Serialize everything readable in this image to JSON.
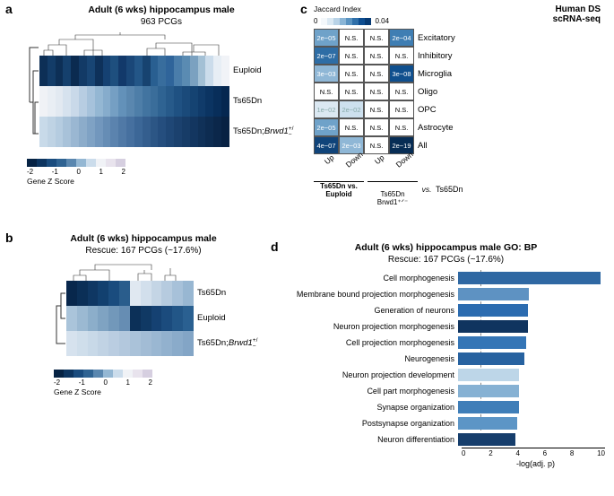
{
  "panels": {
    "a": "a",
    "b": "b",
    "c": "c",
    "d": "d"
  },
  "panel_a": {
    "title_bold": "Adult (6 wks) hippocampus male",
    "subtitle": "963 PCGs",
    "row_labels": [
      "Euploid",
      "Ts65Dn",
      "Ts65Dn;\nBrwd1⁺ᐟ⁻"
    ],
    "rows": [
      [
        "#0d2f56",
        "#133c68",
        "#0d2f56",
        "#15406d",
        "#0b2b50",
        "#123a66",
        "#184574",
        "#0e315a",
        "#154172",
        "#1e4f7e",
        "#12396a",
        "#1a4778",
        "#235687",
        "#174370",
        "#295f91",
        "#386d9d",
        "#2f649a",
        "#4a7daa",
        "#5a8bb2",
        "#7ba1c0",
        "#a3c0d5",
        "#cbdceb",
        "#e7eef5",
        "#f1f3f7"
      ],
      [
        "#f0f2f6",
        "#e9eef4",
        "#e2e9f1",
        "#d6e2ee",
        "#c9d9e9",
        "#b7cde2",
        "#a6c2db",
        "#94b7d3",
        "#86accc",
        "#759fc3",
        "#6391b9",
        "#5a87af",
        "#4e7ea8",
        "#4274a0",
        "#3a6d9a",
        "#2f6392",
        "#275a8a",
        "#1f5182",
        "#1a4a7a",
        "#154372",
        "#103b6a",
        "#0b3462",
        "#082e5a",
        "#052750"
      ],
      [
        "#c8dae9",
        "#bfd3e4",
        "#b5cce0",
        "#a8c2d9",
        "#9ab7d2",
        "#8cacca",
        "#7fa2c4",
        "#7297bd",
        "#668db5",
        "#5b83ae",
        "#5079a6",
        "#46709f",
        "#3c6797",
        "#345e8e",
        "#2c5685",
        "#254e7e",
        "#1f4776",
        "#1b416e",
        "#173c67",
        "#133660",
        "#103158",
        "#0d2c51",
        "#0b274a",
        "#082243"
      ]
    ],
    "z_colors": [
      "#062344",
      "#0d3560",
      "#1a4c7e",
      "#2f6392",
      "#5a87af",
      "#94b7d3",
      "#cbdceb",
      "#f0f2f6",
      "#e8e3ed",
      "#d6cfe0"
    ],
    "z_ticks": [
      "-2",
      "-1",
      "0",
      "1",
      "2"
    ],
    "z_label": "Gene Z Score"
  },
  "panel_b": {
    "title_bold": "Adult (6 wks) hippocampus male",
    "subtitle": "Rescue: 167 PCGs (~17.6%)",
    "row_labels": [
      "Ts65Dn",
      "Euploid",
      "Ts65Dn;\nBrwd1⁺ᐟ⁻"
    ],
    "rows": [
      [
        "#08274c",
        "#0b2f57",
        "#0f3763",
        "#12406f",
        "#1a4c7e",
        "#2a5d8c",
        "#e0e8f1",
        "#d2dfec",
        "#c4d5e5",
        "#b6cbdf",
        "#a7c1d9",
        "#98b7d2"
      ],
      [
        "#aac4da",
        "#9bb9d2",
        "#8caeca",
        "#7fa3c2",
        "#7298ba",
        "#668db3",
        "#0c3058",
        "#103964",
        "#154172",
        "#1b4b7d",
        "#225687",
        "#2a6091"
      ],
      [
        "#d6e2ee",
        "#cfdeeb",
        "#c8d9e8",
        "#c1d3e4",
        "#bacde1",
        "#b3c8dd",
        "#aac2d9",
        "#a2bcd5",
        "#9ab7d2",
        "#92b1ce",
        "#8aabca",
        "#83a5c6"
      ]
    ],
    "z_colors": [
      "#062344",
      "#0d3560",
      "#1a4c7e",
      "#2f6392",
      "#5a87af",
      "#94b7d3",
      "#cbdceb",
      "#f0f2f6",
      "#e8e3ed",
      "#d6cfe0"
    ],
    "z_ticks": [
      "-2",
      "-1",
      "0",
      "1",
      "2"
    ],
    "z_label": "Gene Z Score"
  },
  "panel_c": {
    "legend_label": "Jaccard Index",
    "legend_ticks": [
      "0",
      "0.04"
    ],
    "legend_colors": [
      "#f4f8fb",
      "#dbe9f3",
      "#b9d3e7",
      "#8ab5d6",
      "#5a93c1",
      "#2f6fa9",
      "#0d4d90",
      "#063a74"
    ],
    "right_title": "Human DS\nscRNA-seq",
    "row_names": [
      "Excitatory",
      "Inhibitory",
      "Microglia",
      "Oligo",
      "OPC",
      "Astrocyte",
      "All"
    ],
    "col_names": [
      "Up",
      "Down",
      "Up",
      "Down"
    ],
    "cells": [
      [
        {
          "t": "2e−05",
          "bg": "#6fa2c9",
          "fg": "#fff"
        },
        {
          "t": "N.S.",
          "bg": "#ffffff",
          "fg": "#000"
        },
        {
          "t": "N.S.",
          "bg": "#ffffff",
          "fg": "#000"
        },
        {
          "t": "2e−04",
          "bg": "#3f7eb3",
          "fg": "#fff"
        }
      ],
      [
        {
          "t": "2e−07",
          "bg": "#2e6da5",
          "fg": "#fff"
        },
        {
          "t": "N.S.",
          "bg": "#ffffff",
          "fg": "#000"
        },
        {
          "t": "N.S.",
          "bg": "#ffffff",
          "fg": "#000"
        },
        {
          "t": "N.S.",
          "bg": "#ffffff",
          "fg": "#000"
        }
      ],
      [
        {
          "t": "3e−03",
          "bg": "#8fb7d6",
          "fg": "#fff"
        },
        {
          "t": "N.S.",
          "bg": "#ffffff",
          "fg": "#000"
        },
        {
          "t": "N.S.",
          "bg": "#ffffff",
          "fg": "#000"
        },
        {
          "t": "3e−08",
          "bg": "#0f4f8e",
          "fg": "#fff"
        }
      ],
      [
        {
          "t": "N.S.",
          "bg": "#ffffff",
          "fg": "#000"
        },
        {
          "t": "N.S.",
          "bg": "#ffffff",
          "fg": "#000"
        },
        {
          "t": "N.S.",
          "bg": "#ffffff",
          "fg": "#000"
        },
        {
          "t": "N.S.",
          "bg": "#ffffff",
          "fg": "#000"
        }
      ],
      [
        {
          "t": "1e−02",
          "bg": "#dbe8f2",
          "fg": "#8aa"
        },
        {
          "t": "2e−02",
          "bg": "#cde0ee",
          "fg": "#8aa"
        },
        {
          "t": "N.S.",
          "bg": "#ffffff",
          "fg": "#000"
        },
        {
          "t": "N.S.",
          "bg": "#ffffff",
          "fg": "#000"
        }
      ],
      [
        {
          "t": "2e−05",
          "bg": "#6fa2c9",
          "fg": "#fff"
        },
        {
          "t": "N.S.",
          "bg": "#ffffff",
          "fg": "#000"
        },
        {
          "t": "N.S.",
          "bg": "#ffffff",
          "fg": "#000"
        },
        {
          "t": "N.S.",
          "bg": "#ffffff",
          "fg": "#000"
        }
      ],
      [
        {
          "t": "4e−07",
          "bg": "#10447a",
          "fg": "#fff"
        },
        {
          "t": "2e−03",
          "bg": "#8fb7d6",
          "fg": "#fff"
        },
        {
          "t": "N.S.",
          "bg": "#ffffff",
          "fg": "#000"
        },
        {
          "t": "2e−19",
          "bg": "#072d55",
          "fg": "#fff"
        }
      ]
    ],
    "group_left": "Ts65Dn vs. Euploid",
    "group_right": "Ts65Dn\nBrwd1⁺ᐟ⁻",
    "vs_label": "vs.",
    "group_right2": "Ts65Dn"
  },
  "panel_d": {
    "title_bold": "Adult (6 wks) hippocampus male GO: BP",
    "subtitle": "Rescue: 167 PCGs (~17.6%)",
    "xmax": 10,
    "threshold": 1.3,
    "xlabel": "-log(adj. p)",
    "xticks": [
      "0",
      "2",
      "4",
      "6",
      "8",
      "10"
    ],
    "bars": [
      {
        "label": "Cell morphogenesis",
        "v": 9.4,
        "c": "#2f68a3"
      },
      {
        "label": "Membrane bound projection morphogenesis",
        "v": 4.7,
        "c": "#5e92c2"
      },
      {
        "label": "Generation of neurons",
        "v": 4.6,
        "c": "#2c6cb0"
      },
      {
        "label": "Neuron projection morphogenesis",
        "v": 4.6,
        "c": "#10345f"
      },
      {
        "label": "Cell projection morphogenesis",
        "v": 4.5,
        "c": "#3475b6"
      },
      {
        "label": "Neurogenesis",
        "v": 4.4,
        "c": "#2762a0"
      },
      {
        "label": "Neuron projection development",
        "v": 4.0,
        "c": "#bdd6e8"
      },
      {
        "label": "Cell part morphogenesis",
        "v": 4.0,
        "c": "#86b1d3"
      },
      {
        "label": "Synapse organization",
        "v": 4.0,
        "c": "#3f7eb8"
      },
      {
        "label": "Postsynapse organization",
        "v": 3.9,
        "c": "#5c95c6"
      },
      {
        "label": "Neuron differentiation",
        "v": 3.8,
        "c": "#163e6c"
      }
    ]
  }
}
